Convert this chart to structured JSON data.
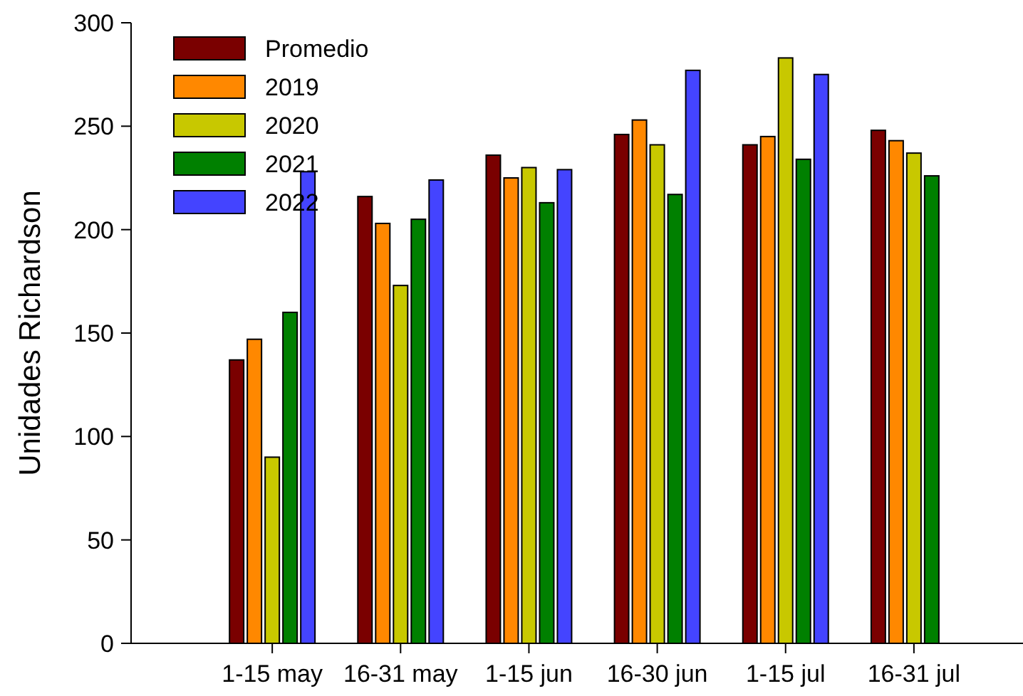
{
  "chart_data": {
    "type": "bar",
    "ylabel": "Unidades Richardson",
    "categories": [
      "1-15 may",
      "16-31 may",
      "1-15 jun",
      "16-30 jun",
      "1-15 jul",
      "16-31 jul"
    ],
    "series": [
      {
        "name": "Promedio",
        "color": "#7a0000",
        "values": [
          137,
          216,
          236,
          246,
          241,
          248
        ]
      },
      {
        "name": "2019",
        "color": "#ff8800",
        "values": [
          147,
          203,
          225,
          253,
          245,
          243
        ]
      },
      {
        "name": "2020",
        "color": "#c8c800",
        "values": [
          90,
          173,
          230,
          241,
          283,
          237
        ]
      },
      {
        "name": "2021",
        "color": "#008000",
        "values": [
          160,
          205,
          213,
          217,
          234,
          226
        ]
      },
      {
        "name": "2022",
        "color": "#4444ff",
        "values": [
          228,
          224,
          229,
          277,
          275,
          null
        ]
      }
    ],
    "ylim": [
      0,
      300
    ],
    "yticks": [
      0,
      50,
      100,
      150,
      200,
      250,
      300
    ],
    "legend": "top left"
  }
}
